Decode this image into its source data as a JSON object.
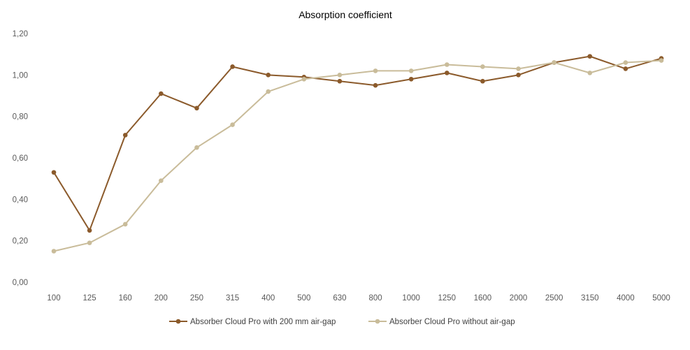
{
  "chart_data": {
    "type": "line",
    "title": "Absorption coefficient",
    "categories": [
      "100",
      "125",
      "160",
      "200",
      "250",
      "315",
      "400",
      "500",
      "630",
      "800",
      "1000",
      "1250",
      "1600",
      "2000",
      "2500",
      "3150",
      "4000",
      "5000"
    ],
    "ylim": [
      0,
      1.2
    ],
    "yticks": [
      0,
      0.2,
      0.4,
      0.6,
      0.8,
      1.0,
      1.2
    ],
    "ytick_labels": [
      "0,00",
      "0,20",
      "0,40",
      "0,60",
      "0,80",
      "1,00",
      "1,20"
    ],
    "grid": false,
    "legend_position": "bottom",
    "series": [
      {
        "name": "Absorber Cloud Pro with 200 mm air-gap",
        "color": "#8B5A2B",
        "values": [
          0.53,
          0.25,
          0.71,
          0.91,
          0.84,
          1.04,
          1.0,
          0.99,
          0.97,
          0.95,
          0.98,
          1.01,
          0.97,
          1.0,
          1.06,
          1.09,
          1.03,
          1.08
        ]
      },
      {
        "name": "Absorber Cloud Pro without air-gap",
        "color": "#C9BC9A",
        "values": [
          0.15,
          0.19,
          0.28,
          0.49,
          0.65,
          0.76,
          0.92,
          0.98,
          1.0,
          1.02,
          1.02,
          1.05,
          1.04,
          1.03,
          1.06,
          1.01,
          1.06,
          1.07
        ]
      }
    ]
  }
}
